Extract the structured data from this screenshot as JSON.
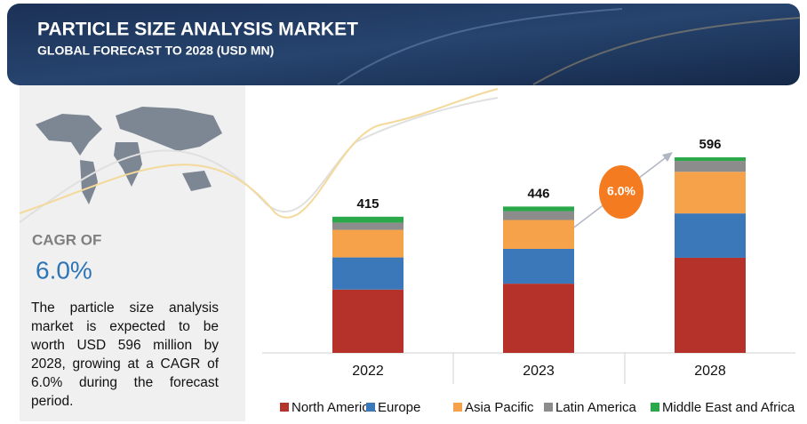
{
  "header": {
    "title": "PARTICLE SIZE ANALYSIS MARKET",
    "subtitle": "GLOBAL FORECAST TO 2028 (USD MN)"
  },
  "sidebar": {
    "cagr_label": "CAGR OF",
    "cagr_value": "6.0%",
    "text": "The particle size analysis market is expected to be worth USD 596 million by 2028, growing at a CAGR of 6.0% during the forecast period."
  },
  "chart_data": {
    "type": "stacked-bar",
    "categories": [
      "2022",
      "2023",
      "2028"
    ],
    "totals": [
      415,
      446,
      596
    ],
    "annotation": "6.0%",
    "series": [
      {
        "name": "North America",
        "color": "#b5322b",
        "values": [
          193,
          211,
          290
        ]
      },
      {
        "name": "Europe",
        "color": "#3b78b9",
        "values": [
          98,
          106,
          135
        ]
      },
      {
        "name": "Asia Pacific",
        "color": "#f5a24b",
        "values": [
          84,
          88,
          127
        ]
      },
      {
        "name": "Latin America",
        "color": "#8c8c8c",
        "values": [
          22,
          27,
          33
        ]
      },
      {
        "name": "Middle East and Africa",
        "color": "#2aa84a",
        "values": [
          18,
          14,
          11
        ]
      }
    ]
  }
}
